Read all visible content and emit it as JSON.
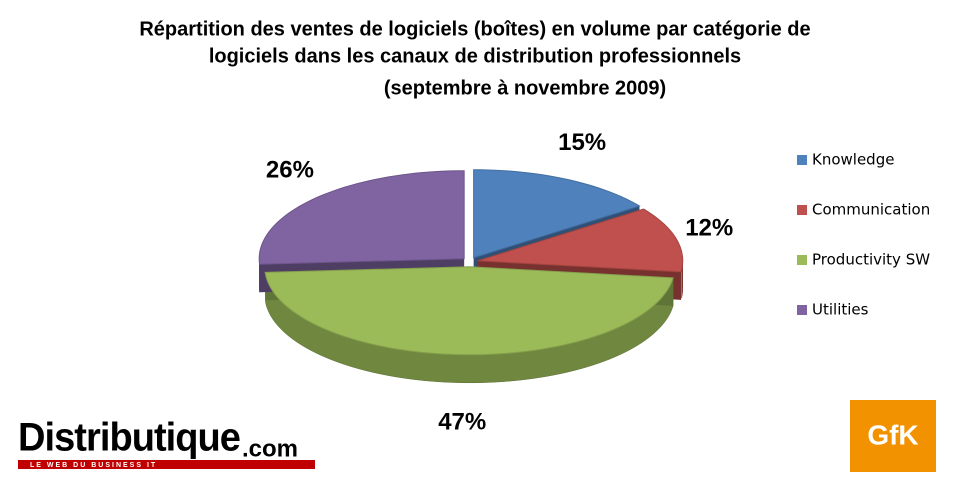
{
  "chart_data": {
    "type": "pie",
    "title": [
      "Répartition des ventes de logiciels (boîtes) en volume par catégorie de",
      "logiciels dans les canaux de distribution professionnels",
      "(septembre à novembre 2009)"
    ],
    "categories": [
      "Knowledge",
      "Communication",
      "Productivity SW",
      "Utilities"
    ],
    "values": [
      15,
      12,
      47,
      26
    ],
    "value_labels": [
      "15%",
      "12%",
      "47%",
      "26%"
    ],
    "colors": [
      "#4f81bd",
      "#c0504d",
      "#9bbb59",
      "#8064a2"
    ],
    "legend": "right",
    "logos": {
      "left": "Distributique",
      "left_suffix": ".com",
      "left_tagline": "LE WEB DU BUSINESS IT",
      "right": "GfK"
    }
  }
}
